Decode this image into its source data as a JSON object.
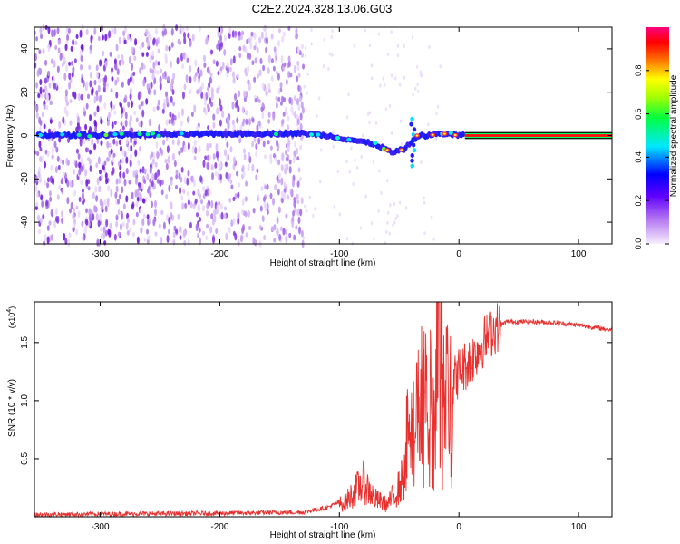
{
  "title": "C2E2.2024.328.13.06.G03",
  "chart_data": [
    {
      "type": "heatmap",
      "xlabel": "Height of straight line (km)",
      "ylabel": "Frequency (Hz)",
      "xlim": [
        -355,
        128
      ],
      "ylim": [
        -50,
        50
      ],
      "xticks": [
        -300,
        -200,
        -100,
        0,
        100
      ],
      "yticks": [
        -40,
        -20,
        0,
        20,
        40
      ],
      "ytick_labels": [
        "-40",
        "-20",
        "0",
        "20",
        "40"
      ],
      "colorbar": {
        "label": "Normalized spectral amplitude",
        "range": [
          0,
          1
        ],
        "ticks": [
          0.0,
          0.2,
          0.4,
          0.6,
          0.8
        ],
        "tick_labels": [
          "0.0",
          "0.2",
          "0.4",
          "0.6",
          "0.8"
        ],
        "colormap": [
          "#f4e9fb",
          "#8a2be2",
          "#2020ff",
          "#00ffff",
          "#00ff00",
          "#ffff00",
          "#ff8000",
          "#ff0000",
          "#ff0080"
        ]
      },
      "ridge": {
        "description_points_x": [
          -355,
          -130,
          -110,
          -90,
          -70,
          -55,
          -45,
          -35,
          -25,
          -15,
          0,
          128
        ],
        "description_points_y": [
          0,
          1,
          0,
          -2,
          -4,
          -8,
          -6,
          0,
          0,
          1,
          0,
          0
        ]
      }
    },
    {
      "type": "line",
      "xlabel": "Height of straight line (km)",
      "ylabel": "SNR (10 * v/v)",
      "scale_label": "(x10",
      "scale_exp": "4",
      "xlim": [
        -355,
        128
      ],
      "ylim": [
        0,
        1.85
      ],
      "xticks": [
        -300,
        -200,
        -100,
        0,
        100
      ],
      "yticks": [
        0.5,
        1.0,
        1.5
      ],
      "ytick_labels": [
        "0.5",
        "1.0",
        "1.5"
      ],
      "color": "#e8302e",
      "series_envelope_x": [
        -355,
        -200,
        -130,
        -110,
        -95,
        -80,
        -70,
        -60,
        -50,
        -40,
        -35,
        -30,
        -25,
        -20,
        -15,
        -10,
        -5,
        0,
        10,
        20,
        30,
        40,
        60,
        80,
        100,
        120,
        128
      ],
      "series_envelope_y": [
        0.02,
        0.03,
        0.04,
        0.08,
        0.15,
        0.35,
        0.18,
        0.12,
        0.3,
        0.6,
        0.8,
        1.1,
        1.0,
        0.9,
        0.9,
        1.1,
        1.15,
        1.25,
        1.35,
        1.5,
        1.62,
        1.68,
        1.68,
        1.67,
        1.65,
        1.62,
        1.61
      ]
    }
  ]
}
